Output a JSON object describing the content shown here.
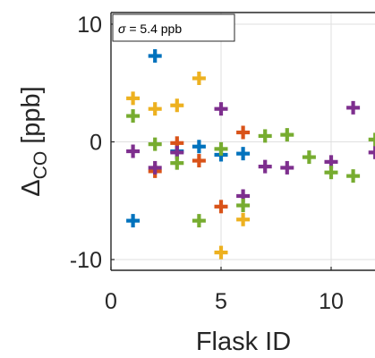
{
  "chart_data": {
    "type": "scatter",
    "title": "",
    "xlabel": "Flask ID",
    "ylabel": "Δ",
    "ylabel_subscript": "CO",
    "ylabel_suffix": " [ppb]",
    "xlim": [
      0,
      12
    ],
    "ylim": [
      -11,
      11
    ],
    "x_ticks": [
      0,
      5,
      10
    ],
    "x_tick_labels": [
      "0",
      "5",
      "10"
    ],
    "y_ticks": [
      -10,
      0,
      10
    ],
    "y_tick_labels": [
      "-10",
      "0",
      "10"
    ],
    "grid": true,
    "marker": "+",
    "annotation": {
      "symbol": "σ",
      "text": " = 5.4 ppb"
    },
    "series": [
      {
        "color": "#0072BD",
        "points": [
          [
            1,
            -6.7
          ],
          [
            2,
            7.3
          ],
          [
            3,
            -0.8
          ],
          [
            4,
            -0.4
          ],
          [
            5,
            -1.1
          ],
          [
            6,
            -1.0
          ]
        ]
      },
      {
        "color": "#D95319",
        "points": [
          [
            2,
            -2.5
          ],
          [
            3,
            -0.1
          ],
          [
            4,
            -1.6
          ],
          [
            5,
            -5.5
          ],
          [
            6,
            0.8
          ]
        ]
      },
      {
        "color": "#EDB120",
        "points": [
          [
            1,
            3.7
          ],
          [
            2,
            2.8
          ],
          [
            3,
            3.1
          ],
          [
            4,
            5.4
          ],
          [
            5,
            -9.4
          ],
          [
            6,
            -6.6
          ]
        ]
      },
      {
        "color": "#7E2F8E",
        "points": [
          [
            1,
            -0.8
          ],
          [
            2,
            -2.2
          ],
          [
            3,
            -0.9
          ],
          [
            5,
            2.8
          ],
          [
            6,
            -4.6
          ],
          [
            7,
            -2.1
          ],
          [
            8,
            -2.2
          ],
          [
            10,
            -1.7
          ],
          [
            11,
            2.9
          ],
          [
            12,
            -0.9
          ]
        ]
      },
      {
        "color": "#77AC30",
        "points": [
          [
            1,
            2.2
          ],
          [
            2,
            -0.2
          ],
          [
            3,
            -1.8
          ],
          [
            4,
            -6.7
          ],
          [
            5,
            -0.6
          ],
          [
            6,
            -5.4
          ],
          [
            7,
            0.5
          ],
          [
            8,
            0.6
          ],
          [
            9,
            -1.3
          ],
          [
            10,
            -2.6
          ],
          [
            11,
            -2.9
          ],
          [
            12,
            0.2
          ]
        ]
      }
    ]
  }
}
